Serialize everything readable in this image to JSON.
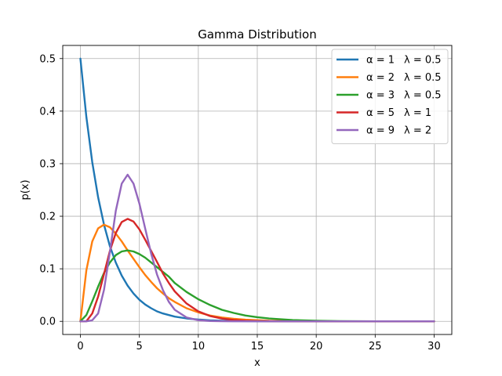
{
  "chart_data": {
    "type": "line",
    "title": "Gamma Distribution",
    "xlabel": "x",
    "ylabel": "p(x)",
    "xlim": [
      -1.5,
      31.5
    ],
    "ylim": [
      -0.025,
      0.525
    ],
    "xticks": [
      0,
      5,
      10,
      15,
      20,
      25,
      30
    ],
    "yticks": [
      0.0,
      0.1,
      0.2,
      0.3,
      0.4,
      0.5
    ],
    "xtick_labels": [
      "0",
      "5",
      "10",
      "15",
      "20",
      "25",
      "30"
    ],
    "ytick_labels": [
      "0.0",
      "0.1",
      "0.2",
      "0.3",
      "0.4",
      "0.5"
    ],
    "grid": true,
    "legend_position": "top-right",
    "x": [
      0,
      0.5,
      1,
      1.5,
      2,
      2.5,
      3,
      3.5,
      4,
      4.5,
      5,
      5.5,
      6,
      6.5,
      7,
      7.5,
      8,
      9,
      10,
      11,
      12,
      13,
      14,
      15,
      16,
      18,
      20,
      22,
      25,
      30
    ],
    "series": [
      {
        "name": "α = 1   λ = 0.5",
        "alpha_label": "α = 1",
        "lambda_label": "λ = 0.5",
        "color": "#1f77b4",
        "values": [
          0.5,
          0.389,
          0.303,
          0.236,
          0.184,
          0.143,
          0.112,
          0.087,
          0.068,
          0.053,
          0.041,
          0.032,
          0.025,
          0.019,
          0.015,
          0.012,
          0.009,
          0.0056,
          0.0034,
          0.002,
          0.0012,
          0.0008,
          0.0005,
          0.0003,
          0.0002,
          0.0001,
          0.0,
          0.0,
          0.0,
          0.0
        ]
      },
      {
        "name": "α = 2   λ = 0.5",
        "alpha_label": "α = 2",
        "lambda_label": "λ = 0.5",
        "color": "#ff7f0e",
        "values": [
          0.0,
          0.097,
          0.152,
          0.177,
          0.184,
          0.179,
          0.167,
          0.152,
          0.135,
          0.119,
          0.103,
          0.088,
          0.075,
          0.063,
          0.053,
          0.044,
          0.037,
          0.025,
          0.017,
          0.011,
          0.0074,
          0.0049,
          0.0032,
          0.0021,
          0.0013,
          0.0006,
          0.0002,
          0.0001,
          0.0,
          0.0
        ]
      },
      {
        "name": "α = 3   λ = 0.5",
        "alpha_label": "α = 3",
        "lambda_label": "λ = 0.5",
        "color": "#2ca02c",
        "values": [
          0.0,
          0.012,
          0.038,
          0.066,
          0.092,
          0.112,
          0.126,
          0.133,
          0.135,
          0.133,
          0.128,
          0.121,
          0.112,
          0.103,
          0.094,
          0.085,
          0.073,
          0.056,
          0.042,
          0.031,
          0.022,
          0.016,
          0.011,
          0.0079,
          0.0054,
          0.0025,
          0.0011,
          0.0005,
          0.0001,
          0.0
        ]
      },
      {
        "name": "α = 5   λ = 1",
        "alpha_label": "α = 5",
        "lambda_label": "λ = 1",
        "color": "#d62728",
        "values": [
          0.0,
          0.0002,
          0.015,
          0.047,
          0.09,
          0.134,
          0.168,
          0.189,
          0.195,
          0.19,
          0.175,
          0.155,
          0.134,
          0.113,
          0.091,
          0.073,
          0.057,
          0.034,
          0.019,
          0.01,
          0.0053,
          0.0027,
          0.0013,
          0.0006,
          0.0003,
          0.0001,
          0.0,
          0.0,
          0.0,
          0.0
        ]
      },
      {
        "name": "α = 9   λ = 2",
        "alpha_label": "α = 9",
        "lambda_label": "λ = 2",
        "color": "#9467bd",
        "values": [
          0.0,
          0.0,
          0.002,
          0.015,
          0.06,
          0.132,
          0.21,
          0.262,
          0.279,
          0.262,
          0.224,
          0.176,
          0.129,
          0.089,
          0.059,
          0.037,
          0.022,
          0.0073,
          0.0022,
          0.0006,
          0.0002,
          0.0,
          0.0,
          0.0,
          0.0,
          0.0,
          0.0,
          0.0,
          0.0,
          0.0
        ]
      }
    ]
  }
}
